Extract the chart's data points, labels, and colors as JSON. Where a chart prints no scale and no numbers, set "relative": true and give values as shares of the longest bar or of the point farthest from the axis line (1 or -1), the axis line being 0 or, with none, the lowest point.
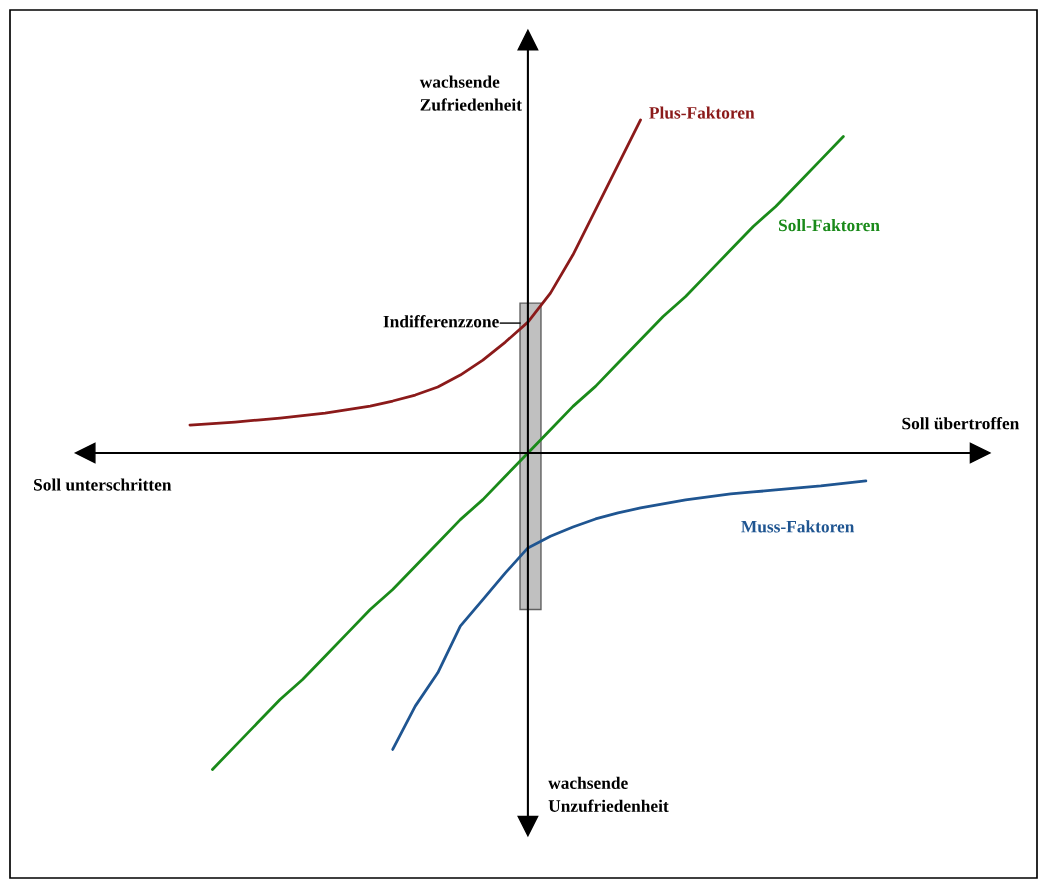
{
  "chart_data": {
    "type": "line",
    "relative": true,
    "categories": [
      null,
      null,
      null,
      null,
      null,
      null,
      null,
      null,
      null,
      null,
      null,
      null,
      null,
      null,
      null,
      null,
      null,
      null,
      null,
      null,
      null,
      null,
      null,
      null,
      null,
      null,
      null,
      null,
      null,
      null,
      null
    ],
    "series": [
      {
        "name": "Plus-Faktoren",
        "color": "#8b1a1a",
        "values": [
          0.084,
          0.088,
          0.093,
          0.099,
          0.105,
          0.112,
          0.12,
          0.13,
          0.141,
          0.156,
          0.174,
          0.198,
          0.234,
          0.279,
          0.333,
          0.393,
          0.48,
          0.595,
          0.73,
          0.865,
          1.0,
          null,
          null,
          null,
          null,
          null,
          null,
          null,
          null,
          null,
          null
        ]
      },
      {
        "name": "Soll-Faktoren",
        "color": "#1a8a1a",
        "values": [
          null,
          -0.95,
          -0.88,
          -0.81,
          -0.74,
          -0.68,
          -0.61,
          -0.54,
          -0.47,
          -0.41,
          -0.34,
          -0.27,
          -0.2,
          -0.14,
          -0.07,
          0.0,
          0.07,
          0.14,
          0.2,
          0.27,
          0.34,
          0.41,
          0.47,
          0.54,
          0.61,
          0.68,
          0.74,
          0.81,
          0.88,
          0.95,
          null
        ]
      },
      {
        "name": "Muss-Faktoren",
        "color": "#1f5591",
        "values": [
          null,
          null,
          null,
          null,
          null,
          null,
          null,
          null,
          null,
          -0.89,
          -0.76,
          -0.66,
          -0.52,
          -0.44,
          -0.36,
          -0.285,
          -0.25,
          -0.222,
          -0.198,
          -0.18,
          -0.165,
          -0.153,
          -0.141,
          -0.132,
          -0.123,
          -0.117,
          -0.111,
          -0.105,
          -0.099,
          -0.091,
          -0.084
        ]
      }
    ],
    "annotations": [
      "wachsende\nZufriedenheit",
      "wachsende\nUnzufriedenheit",
      "Soll übertroffen",
      "Soll unterschritten",
      "Indifferenzzone"
    ]
  }
}
